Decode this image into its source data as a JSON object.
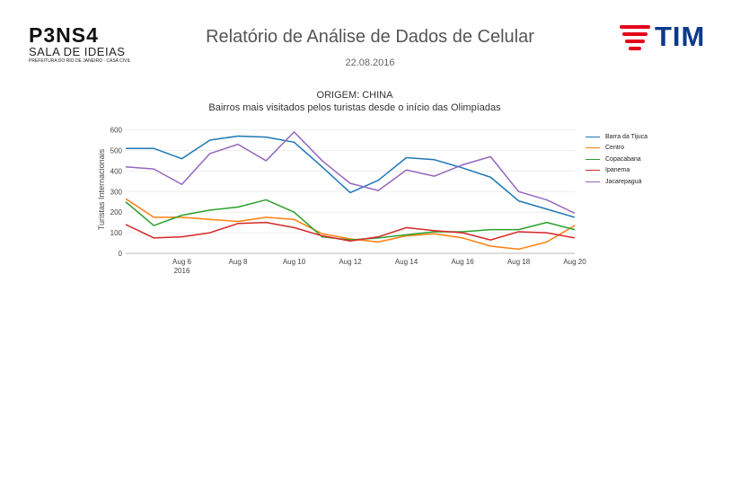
{
  "header": {
    "brand_name": "P3NS4",
    "brand_subtitle": "SALA DE IDEIAS",
    "brand_tagline": "PREFEITURA DO RIO DE JANEIRO · CASA CIVIL",
    "report_title": "Relatório de Análise de Dados de Celular",
    "report_date": "22.08.2016",
    "partner_name": "TIM"
  },
  "colors": {
    "tim_red": "#e3001b",
    "tim_blue": "#0c3a8a"
  },
  "chart_data": {
    "type": "line",
    "title": "ORIGEM: CHINA",
    "subtitle": "Bairros mais visitados pelos turistas desde o início das Olimpíadas",
    "xlabel": "",
    "ylabel": "Turistas Internacionais",
    "x": [
      "2016-08-04",
      "2016-08-05",
      "2016-08-06",
      "2016-08-07",
      "2016-08-08",
      "2016-08-09",
      "2016-08-10",
      "2016-08-11",
      "2016-08-12",
      "2016-08-13",
      "2016-08-14",
      "2016-08-15",
      "2016-08-16",
      "2016-08-17",
      "2016-08-18",
      "2016-08-19",
      "2016-08-20"
    ],
    "x_tick_labels": [
      "Aug 6",
      "Aug 8",
      "Aug 10",
      "Aug 12",
      "Aug 14",
      "Aug 16",
      "Aug 18",
      "Aug 20"
    ],
    "x_year_label": "2016",
    "y_ticks": [
      0,
      100,
      200,
      300,
      400,
      500,
      600
    ],
    "ylim": [
      0,
      620
    ],
    "grid": true,
    "legend_position": "right",
    "series": [
      {
        "name": "Barra da Tijuca",
        "color": "#1f77b4",
        "values": [
          510,
          510,
          460,
          550,
          570,
          565,
          540,
          420,
          295,
          355,
          465,
          455,
          415,
          370,
          255,
          215,
          175
        ]
      },
      {
        "name": "Centro",
        "color": "#ff7f0e",
        "values": [
          265,
          175,
          175,
          165,
          155,
          175,
          165,
          95,
          70,
          55,
          85,
          95,
          75,
          35,
          20,
          55,
          135
        ]
      },
      {
        "name": "Copacabana",
        "color": "#2ca02c",
        "values": [
          250,
          135,
          185,
          210,
          225,
          260,
          200,
          80,
          65,
          75,
          90,
          105,
          105,
          115,
          115,
          150,
          115
        ]
      },
      {
        "name": "Ipanema",
        "color": "#d62728",
        "values": [
          140,
          75,
          80,
          100,
          145,
          150,
          125,
          85,
          60,
          80,
          125,
          110,
          100,
          65,
          105,
          100,
          75
        ]
      },
      {
        "name": "Jacarepaguá",
        "color": "#9467bd",
        "values": [
          420,
          410,
          335,
          485,
          530,
          450,
          590,
          450,
          340,
          305,
          405,
          375,
          430,
          470,
          300,
          260,
          195
        ]
      }
    ]
  }
}
